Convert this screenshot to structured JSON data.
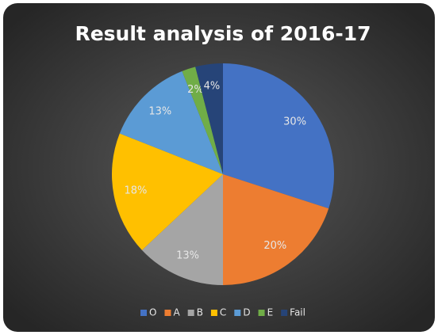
{
  "chart_data": {
    "type": "pie",
    "title": "Result analysis of 2016-17",
    "categories": [
      "O",
      "A",
      "B",
      "C",
      "D",
      "E",
      "Fail"
    ],
    "values": [
      30,
      20,
      13,
      18,
      13,
      2,
      4
    ],
    "value_labels": [
      "30%",
      "20%",
      "13%",
      "18%",
      "13%",
      "2%",
      "4%"
    ],
    "colors": [
      "#4472c4",
      "#ed7d31",
      "#a5a5a5",
      "#ffc000",
      "#5b9bd5",
      "#70ad47",
      "#264478"
    ],
    "legend": "bottom"
  }
}
